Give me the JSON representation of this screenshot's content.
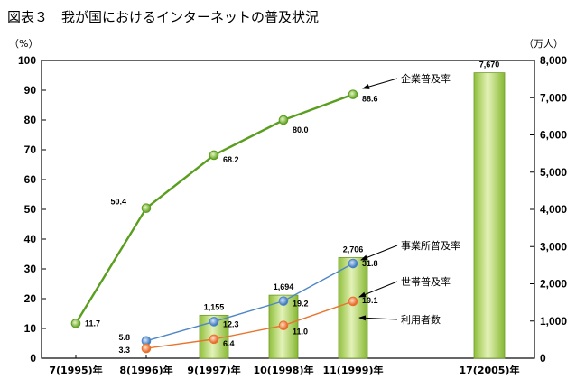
{
  "title": "図表３　我が国におけるインターネットの普及状況",
  "chart_data": {
    "type": "bar+line",
    "categories": [
      "7(1995)年",
      "8(1996)年",
      "9(1997)年",
      "10(1998)年",
      "11(1999)年",
      "17(2005)年"
    ],
    "x_positions": [
      1995,
      1996,
      1997,
      1998,
      1999,
      2005
    ],
    "left_axis": {
      "unit_label": "（%）",
      "range": [
        0,
        100
      ],
      "ticks": [
        "0",
        "10",
        "20",
        "30",
        "40",
        "50",
        "60",
        "70",
        "80",
        "90",
        "100"
      ]
    },
    "right_axis": {
      "unit_label": "（万人）",
      "range": [
        0,
        8000
      ],
      "ticks": [
        "0",
        "1,000",
        "2,000",
        "3,000",
        "4,000",
        "5,000",
        "6,000",
        "7,000",
        "8,000"
      ]
    },
    "bars": {
      "name": "利用者数",
      "points": [
        {
          "x": 1997,
          "value": 1155,
          "label": "1,155"
        },
        {
          "x": 1998,
          "value": 1694,
          "label": "1,694"
        },
        {
          "x": 1999,
          "value": 2706,
          "label": "2,706"
        },
        {
          "x": 2005,
          "value": 7670,
          "label": "7,670"
        }
      ]
    },
    "series": [
      {
        "name": "企業普及率",
        "color": "#5a9e1e",
        "points": [
          {
            "x": 1995,
            "value": 11.7,
            "label": "11.7"
          },
          {
            "x": 1996,
            "value": 50.4,
            "label": "50.4"
          },
          {
            "x": 1997,
            "value": 68.2,
            "label": "68.2"
          },
          {
            "x": 1998,
            "value": 80.0,
            "label": "80.0"
          },
          {
            "x": 1999,
            "value": 88.6,
            "label": "88.6"
          }
        ]
      },
      {
        "name": "事業所普及率",
        "color": "#4f86c6",
        "points": [
          {
            "x": 1996,
            "value": 5.8,
            "label": "5.8"
          },
          {
            "x": 1997,
            "value": 12.3,
            "label": "12.3"
          },
          {
            "x": 1998,
            "value": 19.2,
            "label": "19.2"
          },
          {
            "x": 1999,
            "value": 31.8,
            "label": "31.8"
          }
        ]
      },
      {
        "name": "世帯普及率",
        "color": "#e8742e",
        "points": [
          {
            "x": 1996,
            "value": 3.3,
            "label": "3.3"
          },
          {
            "x": 1997,
            "value": 6.4,
            "label": "6.4"
          },
          {
            "x": 1998,
            "value": 11.0,
            "label": "11.0"
          },
          {
            "x": 1999,
            "value": 19.1,
            "label": "19.1"
          }
        ]
      }
    ],
    "legend": [
      "企業普及率",
      "事業所普及率",
      "世帯普及率",
      "利用者数"
    ],
    "grid": false
  }
}
